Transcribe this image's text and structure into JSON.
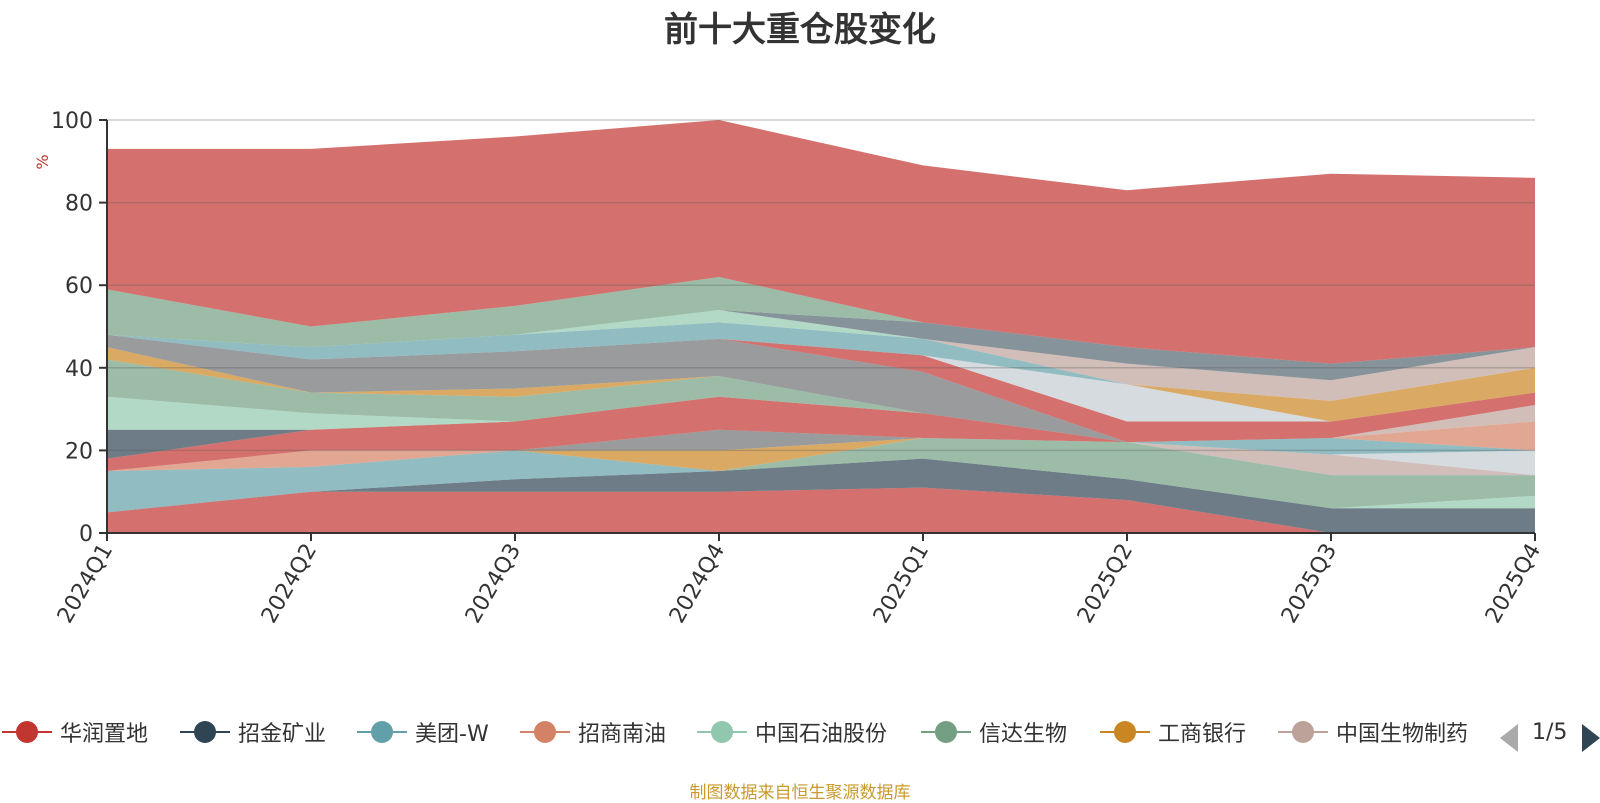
{
  "chart_data": {
    "type": "area",
    "title": "前十大重仓股变化",
    "ylabel": "%",
    "ylim": [
      0,
      100
    ],
    "yticks": [
      0,
      20,
      40,
      60,
      80,
      100
    ],
    "categories": [
      "2024Q1",
      "2024Q2",
      "2024Q3",
      "2024Q4",
      "2025Q1",
      "2025Q2",
      "2025Q3",
      "2025Q4"
    ],
    "grid": true,
    "legend_position": "bottom",
    "series": [
      {
        "name": "华润置地",
        "color": "#c23531",
        "values": [
          5,
          10,
          10,
          10,
          11,
          8,
          0,
          0
        ]
      },
      {
        "name": "招金矿业",
        "color": "#2f4554",
        "values": [
          0,
          0,
          3,
          5,
          7,
          5,
          6,
          6
        ]
      },
      {
        "name": "美团-W",
        "color": "#61a0a8",
        "values": [
          10,
          6,
          7,
          0,
          0,
          0,
          0,
          0
        ]
      },
      {
        "name": "招商南油",
        "color": "#d48265",
        "values": [
          0,
          4,
          0,
          0,
          0,
          0,
          0,
          0
        ]
      },
      {
        "name": "中国石油股份",
        "color": "#91c7ae",
        "values": [
          0,
          0,
          0,
          0,
          0,
          0,
          0,
          3
        ]
      },
      {
        "name": "信达生物",
        "color": "#749f83",
        "values": [
          0,
          0,
          0,
          0,
          5,
          9,
          8,
          5
        ]
      },
      {
        "name": "工商银行",
        "color": "#ca8622",
        "values": [
          0,
          0,
          0,
          5,
          0,
          0,
          0,
          0
        ]
      },
      {
        "name": "中国生物制药",
        "color": "#bda29a",
        "values": [
          0,
          0,
          0,
          0,
          0,
          0,
          5,
          0
        ]
      },
      {
        "name": "",
        "color": "#6e7074",
        "values": [
          0,
          0,
          0,
          5,
          0,
          0,
          0,
          0
        ]
      },
      {
        "name": "",
        "color": "#546570",
        "values": [
          0,
          0,
          0,
          0,
          0,
          0,
          0,
          0
        ]
      },
      {
        "name": "",
        "color": "#c4ccd3",
        "values": [
          0,
          0,
          0,
          0,
          0,
          0,
          0,
          6
        ]
      },
      {
        "name": "",
        "color": "#61a0a8",
        "values": [
          0,
          0,
          0,
          0,
          0,
          0,
          4,
          0
        ]
      },
      {
        "name": "",
        "color": "#d48265",
        "values": [
          0,
          0,
          0,
          0,
          0,
          0,
          0,
          7
        ]
      },
      {
        "name": "",
        "color": "#c23531",
        "values": [
          3,
          5,
          7,
          8,
          6,
          0,
          0,
          0
        ]
      },
      {
        "name": "",
        "color": "#2f4554",
        "values": [
          7,
          0,
          0,
          0,
          0,
          0,
          0,
          0
        ]
      },
      {
        "name": "",
        "color": "#91c7ae",
        "values": [
          8,
          4,
          0,
          0,
          0,
          0,
          0,
          0
        ]
      },
      {
        "name": "",
        "color": "#749f83",
        "values": [
          9,
          5,
          6,
          5,
          0,
          0,
          0,
          0
        ]
      },
      {
        "name": "",
        "color": "#ca8622",
        "values": [
          3,
          0,
          2,
          0,
          0,
          0,
          0,
          0
        ]
      },
      {
        "name": "",
        "color": "#6e7074",
        "values": [
          3,
          8,
          9,
          9,
          10,
          0,
          0,
          0
        ]
      },
      {
        "name": "",
        "color": "#bda29a",
        "values": [
          0,
          0,
          0,
          0,
          0,
          0,
          0,
          4
        ]
      },
      {
        "name": "",
        "color": "#c23531",
        "values": [
          0,
          0,
          0,
          0,
          4,
          5,
          4,
          3
        ]
      },
      {
        "name": "",
        "color": "#c4ccd3",
        "values": [
          0,
          0,
          0,
          0,
          0,
          9,
          0,
          0
        ]
      },
      {
        "name": "",
        "color": "#ca8622",
        "values": [
          0,
          0,
          0,
          0,
          0,
          0,
          5,
          6
        ]
      },
      {
        "name": "",
        "color": "#61a0a8",
        "values": [
          0,
          3,
          4,
          4,
          4,
          0,
          0,
          0
        ]
      },
      {
        "name": "",
        "color": "#bda29a",
        "values": [
          0,
          0,
          0,
          0,
          0,
          5,
          5,
          5
        ]
      },
      {
        "name": "",
        "color": "#91c7ae",
        "values": [
          0,
          0,
          0,
          3,
          0,
          0,
          0,
          0
        ]
      },
      {
        "name": "",
        "color": "#546570",
        "values": [
          0,
          0,
          0,
          0,
          4,
          4,
          4,
          0
        ]
      },
      {
        "name": "",
        "color": "#6e7074",
        "values": [
          0,
          0,
          0,
          0,
          0,
          0,
          0,
          0
        ]
      },
      {
        "name": "",
        "color": "#749f83",
        "values": [
          11,
          5,
          7,
          8,
          0,
          0,
          0,
          0
        ]
      },
      {
        "name": "",
        "color": "#c23531",
        "values": [
          34,
          43,
          41,
          38,
          38,
          38,
          46,
          41
        ]
      }
    ]
  },
  "legend": {
    "items": [
      {
        "label": "华润置地",
        "color": "#c23531"
      },
      {
        "label": "招金矿业",
        "color": "#2f4554"
      },
      {
        "label": "美团-W",
        "color": "#61a0a8"
      },
      {
        "label": "招商南油",
        "color": "#d48265"
      },
      {
        "label": "中国石油股份",
        "color": "#91c7ae"
      },
      {
        "label": "信达生物",
        "color": "#749f83"
      },
      {
        "label": "工商银行",
        "color": "#ca8622"
      },
      {
        "label": "中国生物制药",
        "color": "#bda29a"
      }
    ],
    "page": "1/5"
  },
  "source_note": "制图数据来自恒生聚源数据库"
}
